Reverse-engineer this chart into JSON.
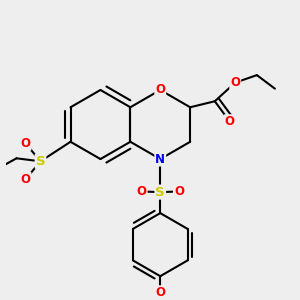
{
  "background_color": "#eeeeee",
  "bond_color": "#000000",
  "atom_colors": {
    "O": "#ff0000",
    "N": "#0000ff",
    "S": "#cccc00",
    "C": "#000000"
  },
  "bond_width": 1.5,
  "font_size": 8.5
}
